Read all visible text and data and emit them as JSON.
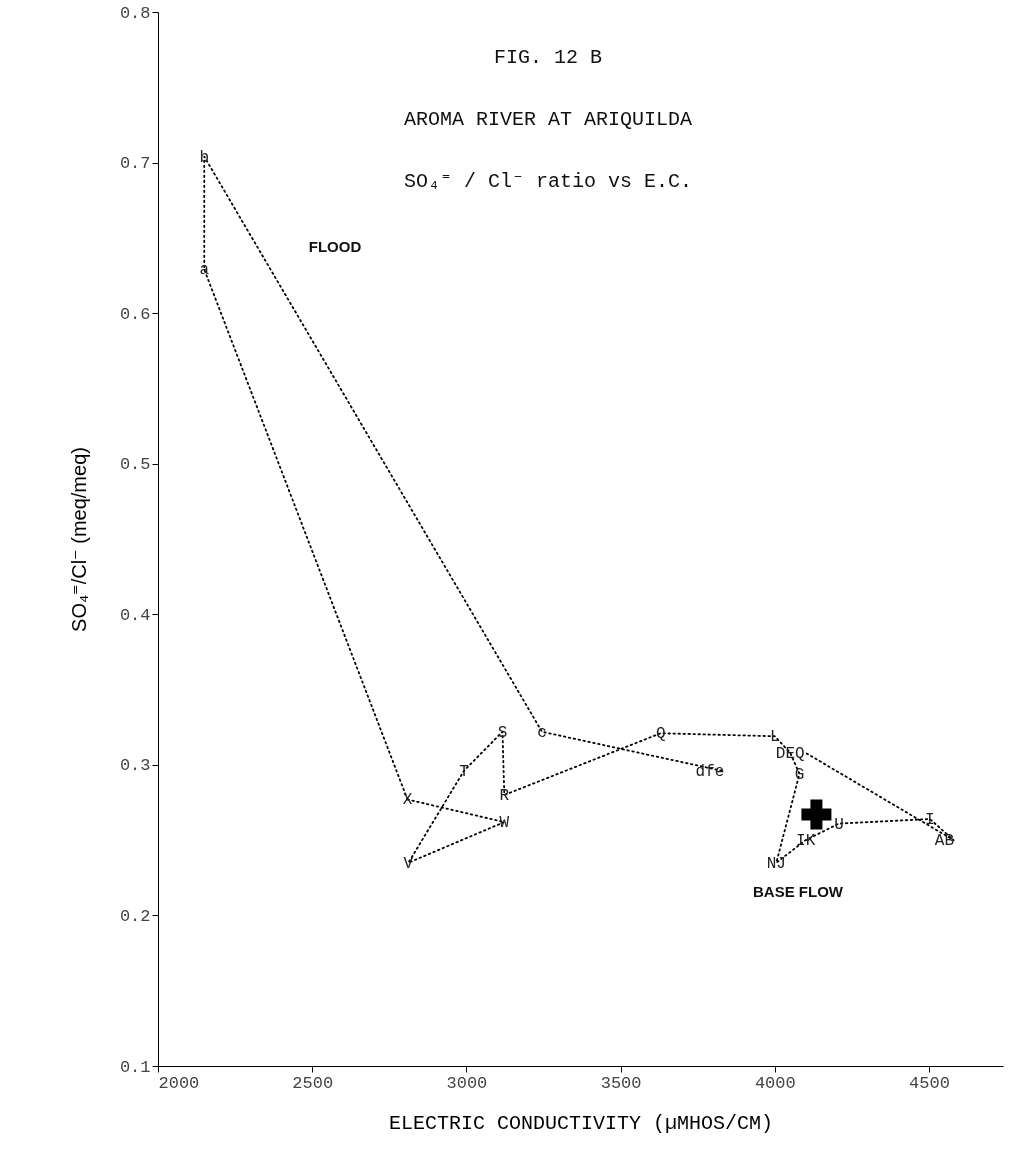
{
  "chart_data": {
    "type": "line",
    "title": "FIG. 12 B",
    "subtitle": "AROMA RIVER AT ARIQUILDA",
    "xlabel": "ELECTRIC CONDUCTIVITY (µMHOS/CM)",
    "ylabel": "SO₄⁼/Cl⁻  (meq/meq)",
    "xlim": [
      2000,
      4740
    ],
    "ylim": [
      0.1,
      0.8
    ],
    "xticks": [
      2000,
      2500,
      3000,
      3500,
      4000,
      4500
    ],
    "yticks": [
      0.1,
      0.2,
      0.3,
      0.4,
      0.5,
      0.6,
      0.7,
      0.8
    ],
    "grid": false,
    "marker": "none",
    "line_style": "dotted",
    "series": [
      {
        "color": "#000000",
        "x": [
          2809,
          2150,
          2150,
          3245,
          3830
        ],
        "values": [
          0.277,
          0.629,
          0.704,
          0.322,
          0.296
        ]
      },
      {
        "color": "#000000",
        "x": [
          2809,
          3123,
          2812,
          2992,
          3117,
          3123,
          3630,
          4000,
          4050,
          4080,
          4005,
          4100,
          4208,
          4503,
          4580,
          4100
        ],
        "values": [
          0.277,
          0.262,
          0.235,
          0.296,
          0.322,
          0.28,
          0.321,
          0.319,
          0.308,
          0.294,
          0.235,
          0.25,
          0.261,
          0.264,
          0.25,
          0.308
        ]
      },
      {
        "type": "scatter",
        "marker": "cross",
        "color": "#000000",
        "x": [
          4135
        ],
        "values": [
          0.267
        ]
      }
    ],
    "annotations": [
      "SO₄⁼ / Cl⁻ ratio  vs  E.C.",
      "FLOOD",
      "BASE FLOW",
      {
        "text": "b",
        "x": 2150,
        "y": 0.704
      },
      {
        "text": "a",
        "x": 2150,
        "y": 0.629
      },
      {
        "text": "c",
        "x": 3245,
        "y": 0.322
      },
      {
        "text": "dfe",
        "x": 3790,
        "y": 0.296
      },
      {
        "text": "X",
        "x": 2809,
        "y": 0.277
      },
      {
        "text": "V",
        "x": 2812,
        "y": 0.235
      },
      {
        "text": "T",
        "x": 2992,
        "y": 0.296
      },
      {
        "text": "S",
        "x": 3117,
        "y": 0.322
      },
      {
        "text": "R",
        "x": 3123,
        "y": 0.28
      },
      {
        "text": "W",
        "x": 3123,
        "y": 0.262
      },
      {
        "text": "Q",
        "x": 3630,
        "y": 0.321
      },
      {
        "text": "L",
        "x": 4000,
        "y": 0.319
      },
      {
        "text": "DEQ",
        "x": 4050,
        "y": 0.308
      },
      {
        "text": "G",
        "x": 4080,
        "y": 0.294
      },
      {
        "text": "U",
        "x": 4208,
        "y": 0.261
      },
      {
        "text": "I",
        "x": 4503,
        "y": 0.264
      },
      {
        "text": "AB",
        "x": 4550,
        "y": 0.25
      },
      {
        "text": "IK",
        "x": 4100,
        "y": 0.25
      },
      {
        "text": "NJ",
        "x": 4005,
        "y": 0.235
      }
    ]
  }
}
